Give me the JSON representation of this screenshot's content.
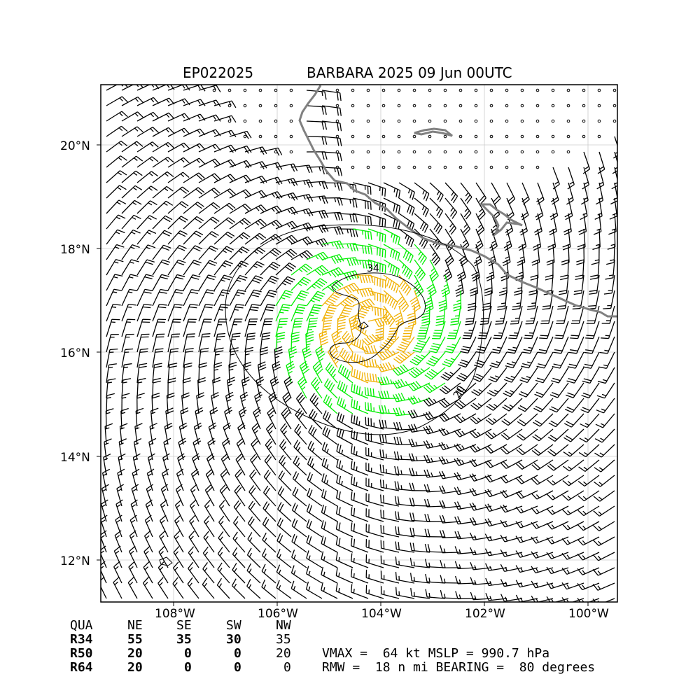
{
  "header": {
    "storm_id": "EP022025",
    "storm_title": "BARBARA 2025 09 Jun 00UTC"
  },
  "map": {
    "lat_ticks": [
      "12°N",
      "14°N",
      "16°N",
      "18°N",
      "20°N"
    ],
    "lon_ticks": [
      "108°W",
      "106°W",
      "104°W",
      "102°W",
      "100°W"
    ],
    "contour_labels": [
      "34",
      "20"
    ],
    "colors": {
      "coast": "#808080",
      "barb_default": "#000000",
      "barb_34kt": "#00ee00",
      "barb_50kt": "#f0b000",
      "barb_64kt": "#ff6600",
      "grid": "#cccccc"
    }
  },
  "radii_table": {
    "columns": [
      "QUA",
      "NE",
      "SE",
      "SW",
      "NW"
    ],
    "rows": [
      {
        "label": "R34",
        "values": [
          "55",
          "35",
          "30",
          "35"
        ]
      },
      {
        "label": "R50",
        "values": [
          "20",
          "0",
          "0",
          "20"
        ]
      },
      {
        "label": "R64",
        "values": [
          "20",
          "0",
          "0",
          "0"
        ]
      }
    ]
  },
  "summary": {
    "line1": "VMAX =  64 kt MSLP = 990.7 hPa",
    "line2": "RMW =  18 n mi BEARING =  80 degrees"
  }
}
